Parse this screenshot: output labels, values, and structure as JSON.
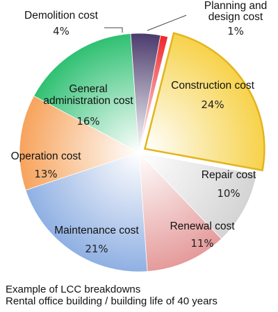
{
  "chart_data": {
    "type": "pie",
    "unit": "%",
    "slices": [
      {
        "label_lines": [
          "Construction cost"
        ],
        "value": 24,
        "value_text": "24%",
        "color": "#f7d24a",
        "exploded": true
      },
      {
        "label_lines": [
          "Repair cost"
        ],
        "value": 10,
        "value_text": "10%",
        "color": "#d4d4d4",
        "exploded": false
      },
      {
        "label_lines": [
          "Renewal cost"
        ],
        "value": 11,
        "value_text": "11%",
        "color": "#e59a9a",
        "exploded": false
      },
      {
        "label_lines": [
          "Maintenance cost"
        ],
        "value": 21,
        "value_text": "21%",
        "color": "#8fb0e3",
        "exploded": false
      },
      {
        "label_lines": [
          "Operation cost"
        ],
        "value": 13,
        "value_text": "13%",
        "color": "#f7a35c",
        "exploded": false
      },
      {
        "label_lines": [
          "General",
          "administration cost"
        ],
        "value": 16,
        "value_text": "16%",
        "color": "#2fc072",
        "exploded": false
      },
      {
        "label_lines": [
          "Demolition cost"
        ],
        "value": 4,
        "value_text": "4%",
        "color": "#4b3b6d",
        "exploded": false
      },
      {
        "label_lines": [
          "Planning and",
          "design cost"
        ],
        "value": 1,
        "value_text": "1%",
        "color": "#f0262a",
        "exploded": false
      }
    ],
    "caption_lines": [
      "Example of LCC breakdowns",
      "Rental office building / building life of 40 years"
    ]
  }
}
